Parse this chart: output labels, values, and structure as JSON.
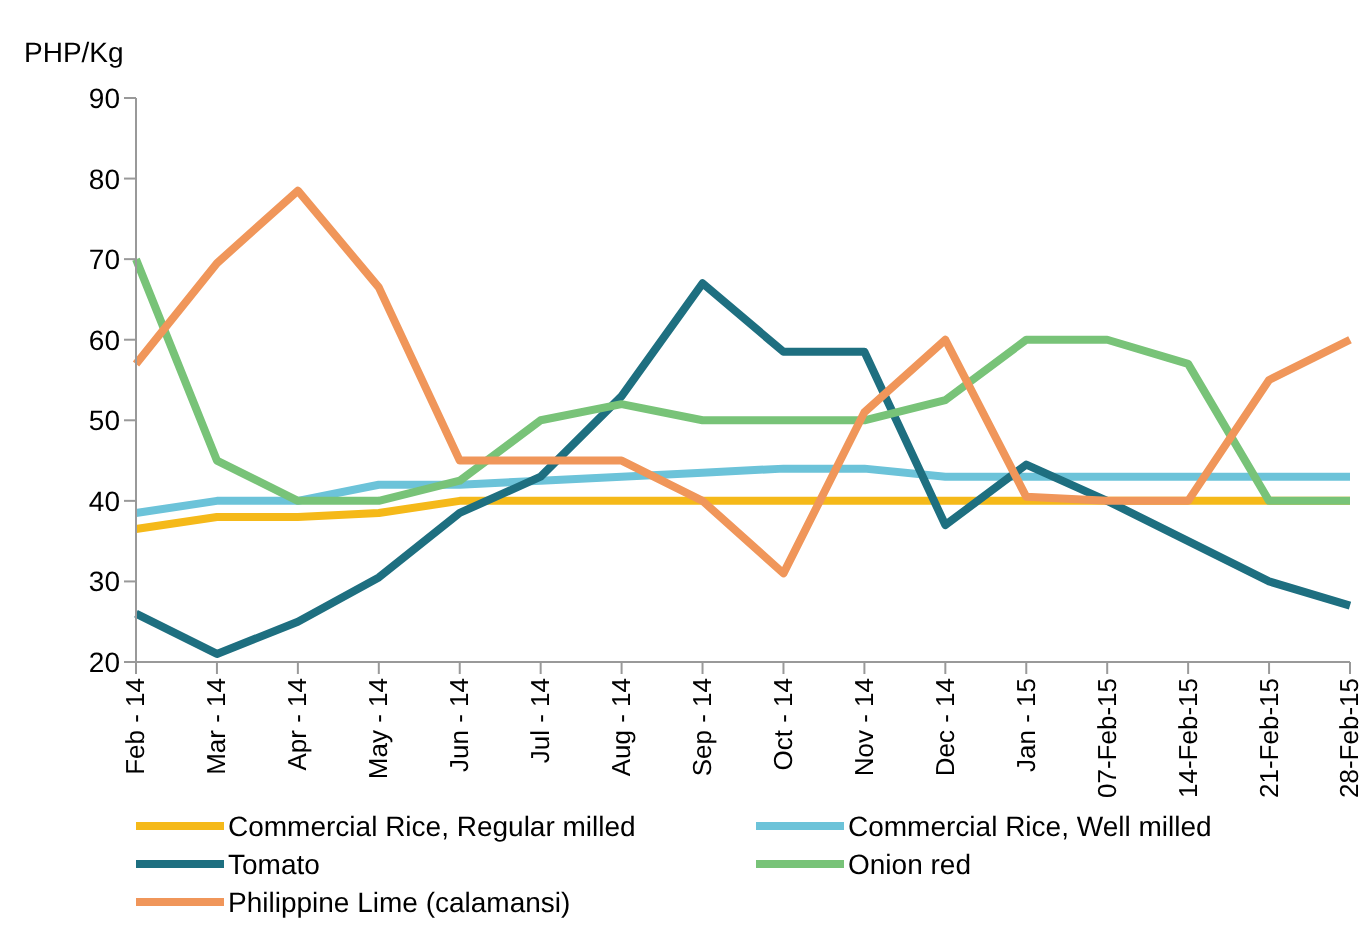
{
  "chart_data": {
    "type": "line",
    "ylabel": "PHP/Kg",
    "categories": [
      "Feb - 14",
      "Mar - 14",
      "Apr - 14",
      "May - 14",
      "Jun - 14",
      "Jul - 14",
      "Aug - 14",
      "Sep - 14",
      "Oct - 14",
      "Nov - 14",
      "Dec - 14",
      "Jan - 15",
      "07-Feb-15",
      "14-Feb-15",
      "21-Feb-15",
      "28-Feb-15"
    ],
    "series": [
      {
        "name": "Commercial Rice, Regular milled",
        "color": "#f5b919",
        "values": [
          36.5,
          38,
          38,
          38.5,
          40,
          40,
          40,
          40,
          40,
          40,
          40,
          40,
          40,
          40,
          40,
          40
        ]
      },
      {
        "name": "Commercial Rice, Well milled",
        "color": "#6cc3d9",
        "values": [
          38.5,
          40,
          40,
          42,
          42,
          42.5,
          43,
          43.5,
          44,
          44,
          43,
          43,
          43,
          43,
          43,
          43
        ]
      },
      {
        "name": "Tomato",
        "color": "#1e6f80",
        "values": [
          26,
          21,
          25,
          30.5,
          38.5,
          43,
          53,
          67,
          58.5,
          58.5,
          37,
          44.5,
          40,
          35,
          30,
          27
        ]
      },
      {
        "name": "Onion red",
        "color": "#78c378",
        "values": [
          70,
          45,
          40,
          40,
          42.5,
          50,
          52,
          50,
          50,
          50,
          52.5,
          60,
          60,
          57,
          40,
          40
        ]
      },
      {
        "name": "Philippine Lime (calamansi)",
        "color": "#f0965a",
        "values": [
          57,
          69.5,
          78.5,
          66.5,
          45,
          45,
          45,
          40,
          31,
          51,
          60,
          40.5,
          40,
          40,
          55,
          60
        ]
      }
    ],
    "ylim": [
      20,
      90
    ],
    "yticks": [
      20,
      30,
      40,
      50,
      60,
      70,
      80,
      90
    ],
    "grid": false,
    "legend": "bottom",
    "marker": "none",
    "line_style": "solid"
  }
}
